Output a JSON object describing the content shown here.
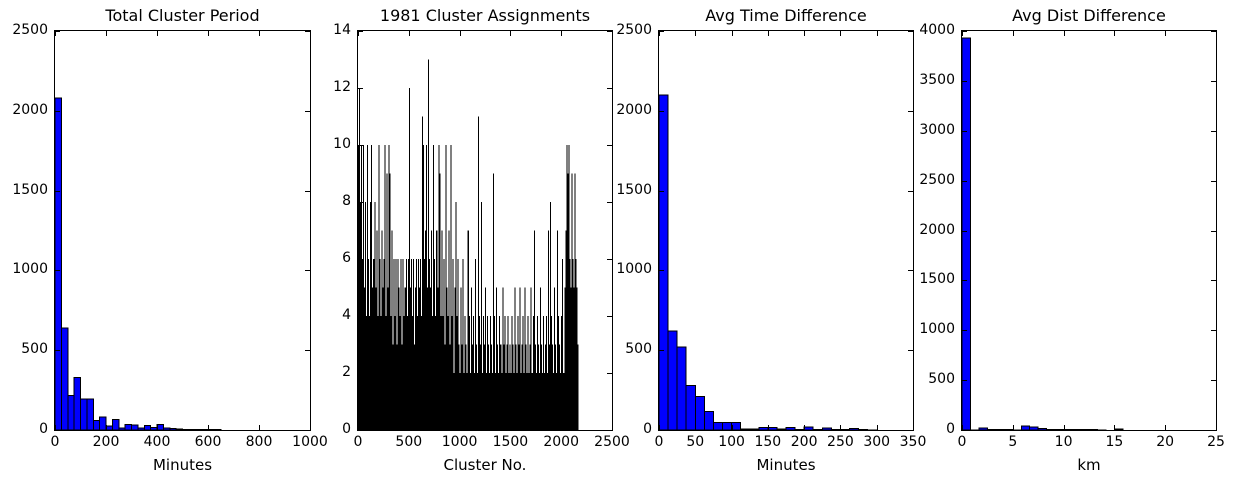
{
  "figure_background": "#ffffff",
  "chart_data": [
    {
      "type": "bar",
      "title": "Total Cluster Period",
      "xlabel": "Minutes",
      "ylabel": "",
      "xlim": [
        0,
        1000
      ],
      "ylim": [
        0,
        2500
      ],
      "xticks": [
        0,
        200,
        400,
        600,
        800,
        1000
      ],
      "yticks": [
        0,
        500,
        1000,
        1500,
        2000,
        2500
      ],
      "grid": false,
      "legend": null,
      "bar_color": "#0000ff",
      "edge_color": "#000000",
      "edge_width": 1,
      "bin_start": 0,
      "bin_width": 25,
      "values": [
        2080,
        640,
        215,
        330,
        195,
        195,
        60,
        80,
        25,
        65,
        12,
        35,
        30,
        12,
        28,
        15,
        35,
        12,
        10,
        5,
        4,
        3,
        3,
        3,
        2,
        2,
        0,
        0,
        0,
        0,
        0,
        0,
        0,
        0,
        0,
        0,
        0,
        0,
        0,
        0
      ]
    },
    {
      "type": "bar",
      "title": "1981 Cluster Assignments",
      "xlabel": "Cluster No.",
      "ylabel": "",
      "xlim": [
        0,
        2500
      ],
      "ylim": [
        0,
        14
      ],
      "xticks": [
        0,
        500,
        1000,
        1500,
        2000,
        2500
      ],
      "yticks": [
        0,
        2,
        4,
        6,
        8,
        10,
        12,
        14
      ],
      "grid": false,
      "legend": null,
      "bar_color": "#000000",
      "edge_color": "#000000",
      "edge_width": 0,
      "bin_start": 0,
      "bin_width": 10,
      "values": [
        10,
        12,
        8,
        10,
        6,
        10,
        5,
        8,
        4,
        10,
        6,
        4,
        8,
        10,
        5,
        6,
        8,
        5,
        7,
        4,
        10,
        6,
        4,
        7,
        5,
        6,
        10,
        4,
        9,
        5,
        10,
        9,
        4,
        7,
        3,
        6,
        4,
        6,
        3,
        6,
        5,
        4,
        6,
        3,
        6,
        4,
        5,
        6,
        4,
        6,
        12,
        5,
        6,
        4,
        6,
        3,
        5,
        6,
        4,
        6,
        5,
        6,
        4,
        11,
        10,
        6,
        7,
        10,
        5,
        13,
        6,
        5,
        7,
        4,
        10,
        6,
        4,
        7,
        5,
        10,
        9,
        4,
        7,
        4,
        6,
        3,
        10,
        5,
        4,
        7,
        3,
        10,
        4,
        6,
        2,
        5,
        8,
        4,
        6,
        3,
        2,
        5,
        3,
        6,
        2,
        4,
        3,
        2,
        7,
        4,
        2,
        5,
        3,
        4,
        2,
        6,
        3,
        2,
        11,
        4,
        3,
        8,
        2,
        4,
        3,
        5,
        2,
        4,
        3,
        2,
        4,
        3,
        2,
        9,
        4,
        2,
        5,
        3,
        2,
        4,
        3,
        2,
        5,
        3,
        4,
        2,
        3,
        4,
        2,
        3,
        2,
        4,
        3,
        2,
        5,
        3,
        2,
        4,
        3,
        5,
        2,
        3,
        4,
        2,
        5,
        3,
        2,
        4,
        2,
        3,
        5,
        2,
        4,
        7,
        3,
        2,
        4,
        3,
        2,
        5,
        3,
        2,
        4,
        2,
        3,
        4,
        2,
        7,
        3,
        8,
        4,
        3,
        2,
        5,
        3,
        2,
        7,
        4,
        3,
        2,
        4,
        6,
        2,
        5,
        7,
        10,
        9,
        10,
        6,
        5,
        9,
        6,
        5,
        9,
        6,
        5,
        3,
        0,
        0,
        0
      ]
    },
    {
      "type": "bar",
      "title": "Avg Time Difference",
      "xlabel": "Minutes",
      "ylabel": "",
      "xlim": [
        0,
        350
      ],
      "ylim": [
        0,
        2500
      ],
      "xticks": [
        0,
        50,
        100,
        150,
        200,
        250,
        300,
        350
      ],
      "yticks": [
        0,
        500,
        1000,
        1500,
        2000,
        2500
      ],
      "grid": false,
      "legend": null,
      "bar_color": "#0000ff",
      "edge_color": "#000000",
      "edge_width": 1,
      "bin_start": 0,
      "bin_width": 12.5,
      "values": [
        2100,
        620,
        520,
        280,
        210,
        115,
        48,
        48,
        48,
        6,
        5,
        16,
        16,
        6,
        16,
        4,
        18,
        4,
        12,
        3,
        3,
        10,
        2,
        1,
        0,
        0,
        0,
        0
      ]
    },
    {
      "type": "bar",
      "title": "Avg Dist Difference",
      "xlabel": "km",
      "ylabel": "",
      "xlim": [
        0,
        25
      ],
      "ylim": [
        0,
        4000
      ],
      "xticks": [
        0,
        5,
        10,
        15,
        20,
        25
      ],
      "yticks": [
        0,
        500,
        1000,
        1500,
        2000,
        2500,
        3000,
        3500,
        4000
      ],
      "grid": false,
      "legend": null,
      "bar_color": "#0000ff",
      "edge_color": "#000000",
      "edge_width": 1,
      "bin_start": 0,
      "bin_width": 0.8333,
      "values": [
        3930,
        2,
        22,
        5,
        5,
        5,
        2,
        38,
        28,
        14,
        5,
        4,
        4,
        5,
        4,
        3,
        2,
        0,
        8,
        0,
        0,
        0,
        0,
        0,
        0,
        0,
        0,
        0,
        0,
        0
      ]
    }
  ]
}
